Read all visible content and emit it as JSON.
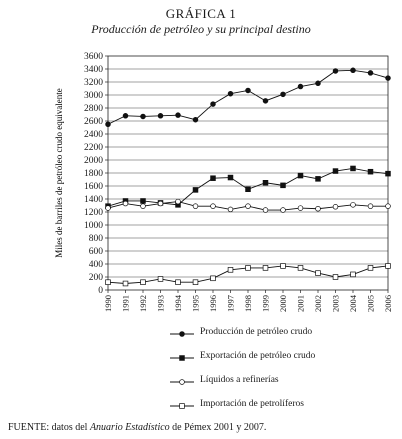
{
  "figure": {
    "label": "GRÁFICA 1",
    "title": "Producción de petróleo y su principal destino"
  },
  "source": {
    "prefix": "FUENTE:",
    "text1": " datos del ",
    "publication": "Anuario Estadístico",
    "text2": " de Pémex 2001 y 2007."
  },
  "chart_data": {
    "type": "line",
    "ylabel": "Miles de barriles de petróleo crudo equivalente",
    "xlabel": "",
    "ylim": [
      0,
      3600
    ],
    "yticks": [
      0,
      200,
      400,
      600,
      800,
      1000,
      1200,
      1400,
      1600,
      1800,
      2000,
      2200,
      2400,
      2600,
      2800,
      3000,
      3200,
      3400,
      3600
    ],
    "x": [
      "1990",
      "1991",
      "1992",
      "1993",
      "1994",
      "1995",
      "1996",
      "1997",
      "1998",
      "1999",
      "2000",
      "2001",
      "2002",
      "2003",
      "2004",
      "2005",
      "2006"
    ],
    "grid": "horizontal",
    "legend_position": "bottom",
    "series": [
      {
        "name": "Producción de petróleo crudo",
        "marker": "filled-circle",
        "values": [
          2550,
          2680,
          2670,
          2680,
          2690,
          2620,
          2860,
          3020,
          3070,
          2910,
          3010,
          3130,
          3180,
          3370,
          3380,
          3340,
          3260
        ]
      },
      {
        "name": "Exportación de petróleo crudo",
        "marker": "filled-square",
        "values": [
          1290,
          1370,
          1370,
          1340,
          1310,
          1540,
          1720,
          1730,
          1550,
          1650,
          1610,
          1760,
          1710,
          1830,
          1870,
          1820,
          1790
        ]
      },
      {
        "name": "Líquidos a refinerías",
        "marker": "open-circle",
        "values": [
          1260,
          1330,
          1290,
          1330,
          1360,
          1290,
          1290,
          1240,
          1290,
          1230,
          1230,
          1260,
          1250,
          1280,
          1310,
          1290,
          1290
        ]
      },
      {
        "name": "Importación de petrolíferos",
        "marker": "open-square",
        "values": [
          120,
          100,
          120,
          170,
          120,
          120,
          180,
          310,
          340,
          340,
          370,
          340,
          260,
          200,
          240,
          340,
          370
        ]
      }
    ]
  }
}
